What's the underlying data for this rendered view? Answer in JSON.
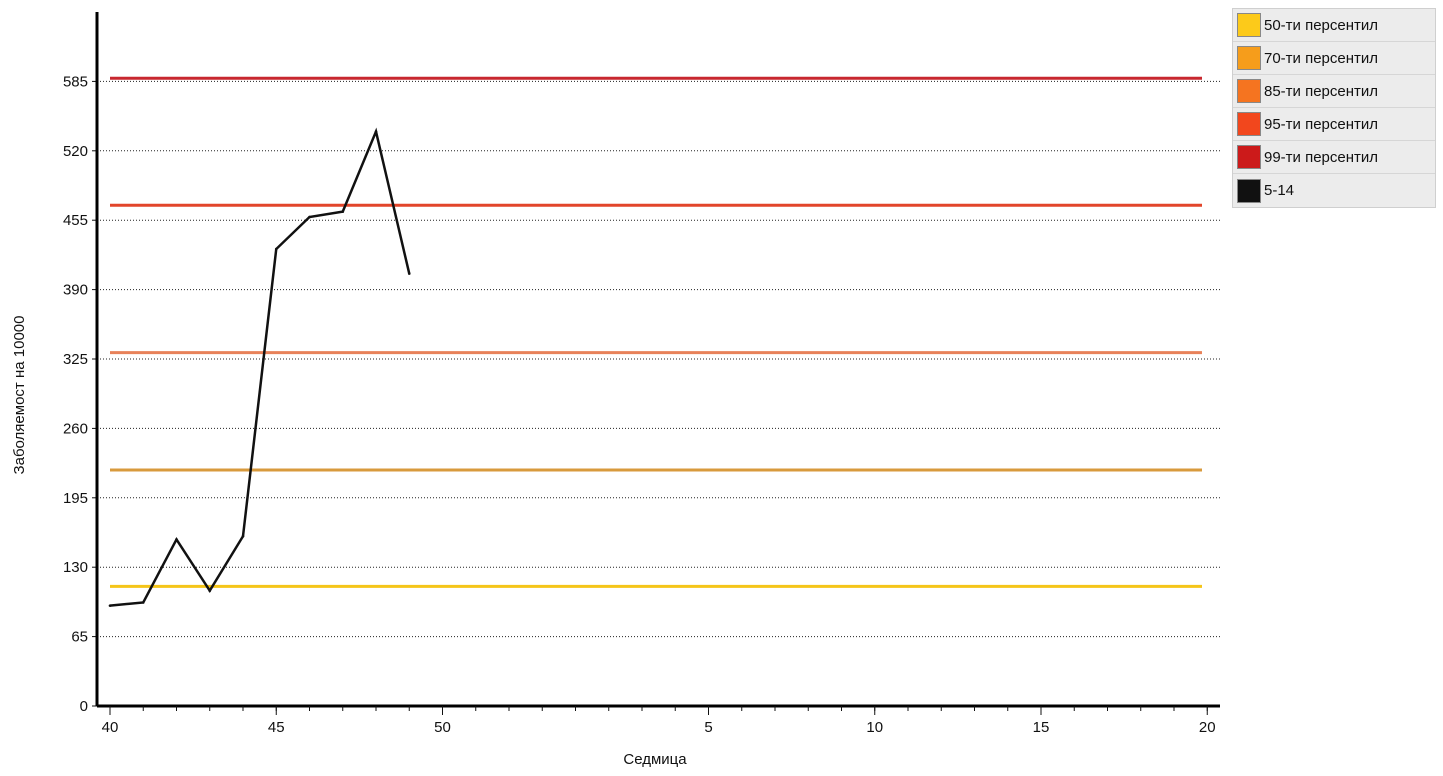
{
  "chart_data": {
    "type": "line",
    "title": "",
    "xlabel": "Седмица",
    "ylabel": "Заболяемост на 10000",
    "x_ticks": [
      "40",
      "45",
      "50",
      "5",
      "10",
      "15",
      "20"
    ],
    "y_ticks": [
      0,
      65,
      130,
      195,
      260,
      325,
      390,
      455,
      520,
      585
    ],
    "ylim": [
      0,
      650
    ],
    "grid": "horizontal-dotted",
    "legend_position": "top-right",
    "weeks": [
      "40",
      "41",
      "42",
      "43",
      "44",
      "45",
      "46",
      "47",
      "48",
      "49",
      "50",
      "51",
      "52",
      "53",
      "1",
      "2",
      "3",
      "4",
      "5",
      "6",
      "7",
      "8",
      "9",
      "10",
      "11",
      "12",
      "13",
      "14",
      "15",
      "16",
      "17",
      "18",
      "19",
      "20"
    ],
    "thresholds": [
      {
        "name": "50-ти персентил",
        "value": 112,
        "color": "#f5c518"
      },
      {
        "name": "70-ти персентил",
        "value": 221,
        "color": "#d89a3c"
      },
      {
        "name": "85-ти персентил",
        "value": 331,
        "color": "#e8825a"
      },
      {
        "name": "95-ти персентил",
        "value": 469,
        "color": "#e2452a"
      },
      {
        "name": "99-ти персентил",
        "value": 588,
        "color": "#c8282f"
      }
    ],
    "series": [
      {
        "name": "5-14",
        "color": "#111111",
        "x": [
          "40",
          "41",
          "42",
          "43",
          "44",
          "45",
          "46",
          "47",
          "48",
          "49"
        ],
        "values": [
          94,
          97,
          156,
          108,
          159,
          428,
          458,
          463,
          538,
          405
        ]
      }
    ]
  },
  "legend": {
    "items": [
      {
        "label": "50-ти персентил",
        "color": "#fcca1a"
      },
      {
        "label": "70-ти персентил",
        "color": "#f69d1b"
      },
      {
        "label": "85-ти персентил",
        "color": "#f57420"
      },
      {
        "label": "95-ти персентил",
        "color": "#f2471d"
      },
      {
        "label": "99-ти персентил",
        "color": "#cc1a1a"
      },
      {
        "label": "5-14",
        "color": "#111111"
      }
    ]
  }
}
